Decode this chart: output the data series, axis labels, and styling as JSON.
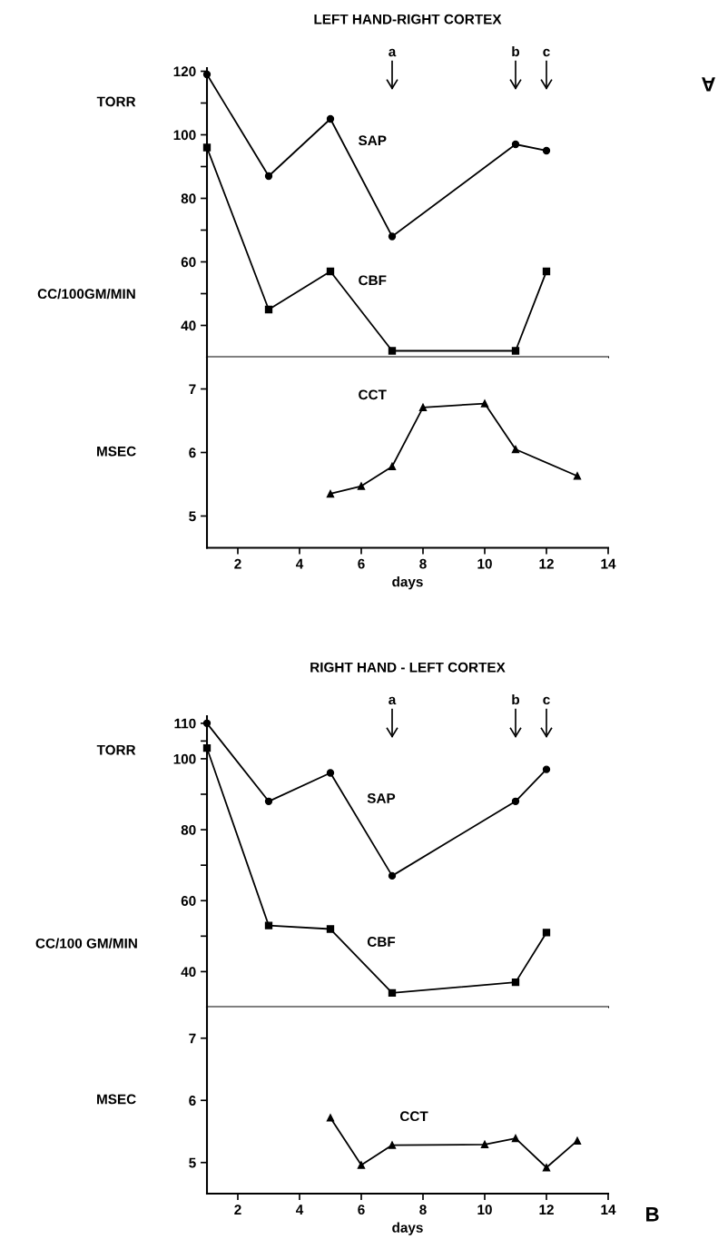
{
  "chart_data": [
    {
      "type": "line",
      "title": "LEFT HAND-RIGHT CORTEX",
      "ylabel": "TORR",
      "xlim": [
        1,
        14
      ],
      "ylim": [
        30,
        121
      ],
      "yticks": [
        40,
        {
          "value": 50,
          "label": null
        },
        60,
        {
          "value": 70,
          "label": null
        },
        80,
        {
          "value": 90,
          "label": null
        },
        100,
        {
          "value": 110,
          "label": null
        },
        120
      ],
      "tick_labels": "y",
      "grid": false,
      "legend": false,
      "line_style": "solid",
      "annotations": [
        "CC/100GM/MIN",
        "A",
        "a",
        "b",
        "c"
      ],
      "series": [
        {
          "name": "SAP",
          "color": "#000000",
          "marker": "circle",
          "x": [
            1,
            3,
            5,
            7,
            11,
            12
          ],
          "values": [
            119,
            87,
            105,
            68,
            97,
            95
          ]
        },
        {
          "name": "CBF",
          "color": "#000000",
          "marker": "square",
          "x": [
            1,
            3,
            5,
            7,
            11,
            12
          ],
          "values": [
            96,
            45,
            57,
            32,
            32,
            57
          ]
        }
      ]
    },
    {
      "type": "line",
      "xlabel": "days",
      "ylabel": "MSEC",
      "xlim": [
        1,
        14
      ],
      "ylim": [
        4.5,
        7.5
      ],
      "xticks": [
        2,
        4,
        6,
        8,
        10,
        12,
        14
      ],
      "yticks": [
        5,
        6,
        7
      ],
      "grid": false,
      "legend": false,
      "line_style": "solid",
      "series": [
        {
          "name": "CCT",
          "color": "#000000",
          "marker": "triangle",
          "x": [
            5,
            6,
            7,
            8,
            10,
            11,
            13
          ],
          "values": [
            5.35,
            5.47,
            5.78,
            6.71,
            6.77,
            6.05,
            5.63
          ]
        }
      ]
    },
    {
      "type": "line",
      "title": "RIGHT HAND - LEFT CORTEX",
      "ylabel": "TORR",
      "xlim": [
        1,
        14
      ],
      "ylim": [
        30,
        112
      ],
      "yticks": [
        40,
        {
          "value": 50,
          "label": null
        },
        60,
        {
          "value": 70,
          "label": null
        },
        80,
        {
          "value": 90,
          "label": null
        },
        100,
        {
          "value": 105,
          "label": null
        },
        110
      ],
      "tick_labels": "y",
      "grid": false,
      "legend": false,
      "line_style": "solid",
      "annotations": [
        "CC/100 GM/MIN",
        "a",
        "b",
        "c"
      ],
      "series": [
        {
          "name": "SAP",
          "color": "#000000",
          "marker": "circle",
          "x": [
            1,
            3,
            5,
            7,
            11,
            12
          ],
          "values": [
            110,
            88,
            96,
            67,
            88,
            97
          ]
        },
        {
          "name": "CBF",
          "color": "#000000",
          "marker": "square",
          "x": [
            1,
            3,
            5,
            7,
            11,
            12
          ],
          "values": [
            103,
            53,
            52,
            34,
            37,
            51
          ]
        }
      ]
    },
    {
      "type": "line",
      "xlabel": "days",
      "ylabel": "MSEC",
      "xlim": [
        1,
        14
      ],
      "ylim": [
        4.5,
        7.5
      ],
      "xticks": [
        2,
        4,
        6,
        8,
        10,
        12,
        14
      ],
      "yticks": [
        5,
        6,
        7
      ],
      "grid": false,
      "legend": false,
      "line_style": "solid",
      "annotations": [
        "B"
      ],
      "series": [
        {
          "name": "CCT",
          "color": "#000000",
          "marker": "triangle",
          "x": [
            5,
            6,
            7,
            10,
            11,
            12,
            13
          ],
          "values": [
            5.72,
            4.96,
            5.28,
            5.29,
            5.39,
            4.92,
            5.35
          ]
        }
      ]
    }
  ]
}
